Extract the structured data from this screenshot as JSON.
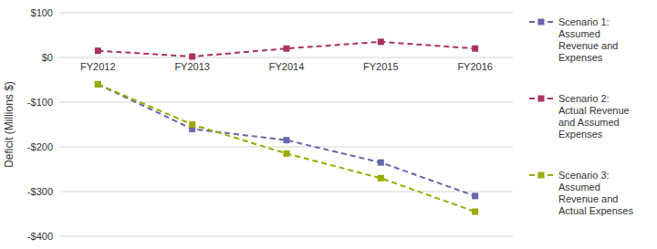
{
  "chart_data": {
    "type": "line",
    "ylabel": "Deficit (Millions $)",
    "categories": [
      "FY2012",
      "FY2013",
      "FY2014",
      "FY2015",
      "FY2016"
    ],
    "series": [
      {
        "name": "Scenario 1:\nAssumed\nRevenue and\nExpenses",
        "color": "#6666aa",
        "values": [
          -60,
          -160,
          -185,
          -235,
          -310
        ]
      },
      {
        "name": "Scenario 2:\nActual Revenue\nand Assumed\nExpenses",
        "color": "#aa3366",
        "values": [
          15,
          2,
          20,
          35,
          20
        ]
      },
      {
        "name": "Scenario 3:\nAssumed\nRevenue and\nActual Expenses",
        "color": "#99aa00",
        "values": [
          -60,
          -150,
          -215,
          -270,
          -345
        ]
      }
    ],
    "ylim": [
      -400,
      100
    ],
    "yticks": [
      {
        "value": -400,
        "label": "-$400"
      },
      {
        "value": -300,
        "label": "-$300"
      },
      {
        "value": -200,
        "label": "-$200"
      },
      {
        "value": -100,
        "label": "-$100"
      },
      {
        "value": 0,
        "label": "$0"
      },
      {
        "value": 100,
        "label": "$100"
      }
    ],
    "grid": true,
    "legend": "right",
    "marker": "square",
    "line_style": "dashed"
  }
}
